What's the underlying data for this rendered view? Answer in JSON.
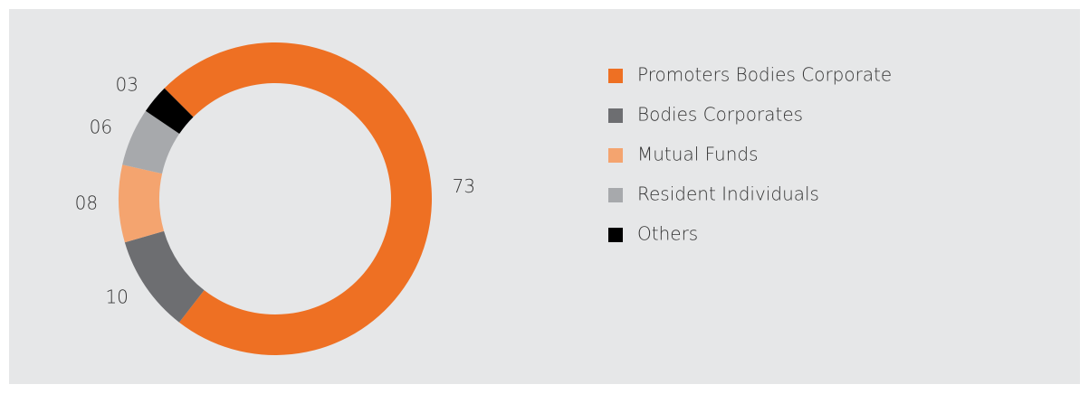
{
  "chart_data": {
    "type": "donut",
    "categories": [
      "Promoters Bodies Corporate",
      "Bodies Corporates",
      "Mutual Funds",
      "Resident Individuals",
      "Others"
    ],
    "values": [
      73,
      10,
      8,
      6,
      3
    ],
    "value_labels": [
      "73",
      "10",
      "08",
      "06",
      "03"
    ],
    "colors": [
      "#ee7023",
      "#6d6e71",
      "#f4a46f",
      "#a7a9ac",
      "#000000"
    ],
    "legend": "right"
  }
}
